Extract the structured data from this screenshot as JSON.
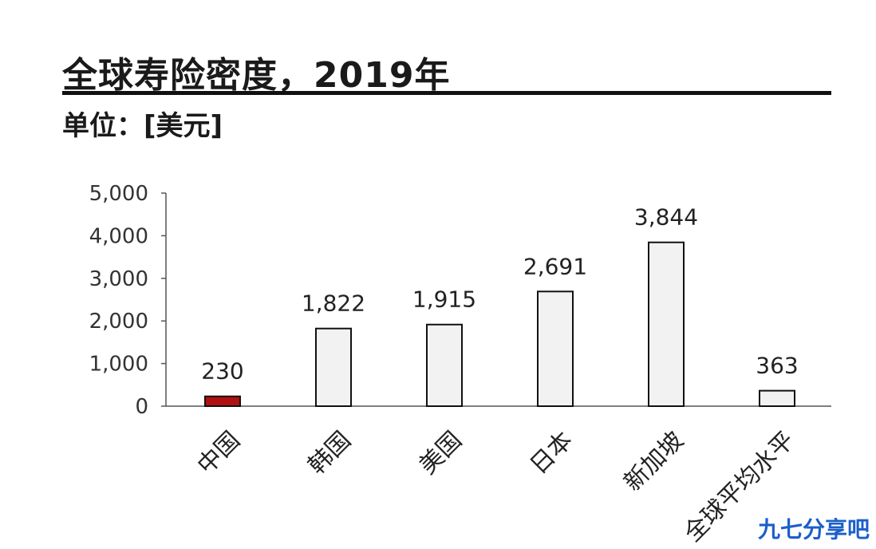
{
  "header": {
    "title": "全球寿险密度，2019年",
    "unit": "单位：[美元]"
  },
  "watermark": "九七分享吧",
  "chart_data": {
    "type": "bar",
    "categories": [
      "中国",
      "韩国",
      "美国",
      "日本",
      "新加坡",
      "全球平均水平"
    ],
    "values": [
      230,
      1822,
      1915,
      2691,
      3844,
      363
    ],
    "value_labels": [
      "230",
      "1,822",
      "1,915",
      "2,691",
      "3,844",
      "363"
    ],
    "yticks": [
      "0",
      "1,000",
      "2,000",
      "3,000",
      "4,000",
      "5,000"
    ],
    "ylim": [
      0,
      5000
    ],
    "grid": false,
    "colors": {
      "highlight": "#b01010",
      "bar_fill": "#f2f2f2",
      "bar_stroke": "#111111"
    },
    "highlight_index": 0
  }
}
